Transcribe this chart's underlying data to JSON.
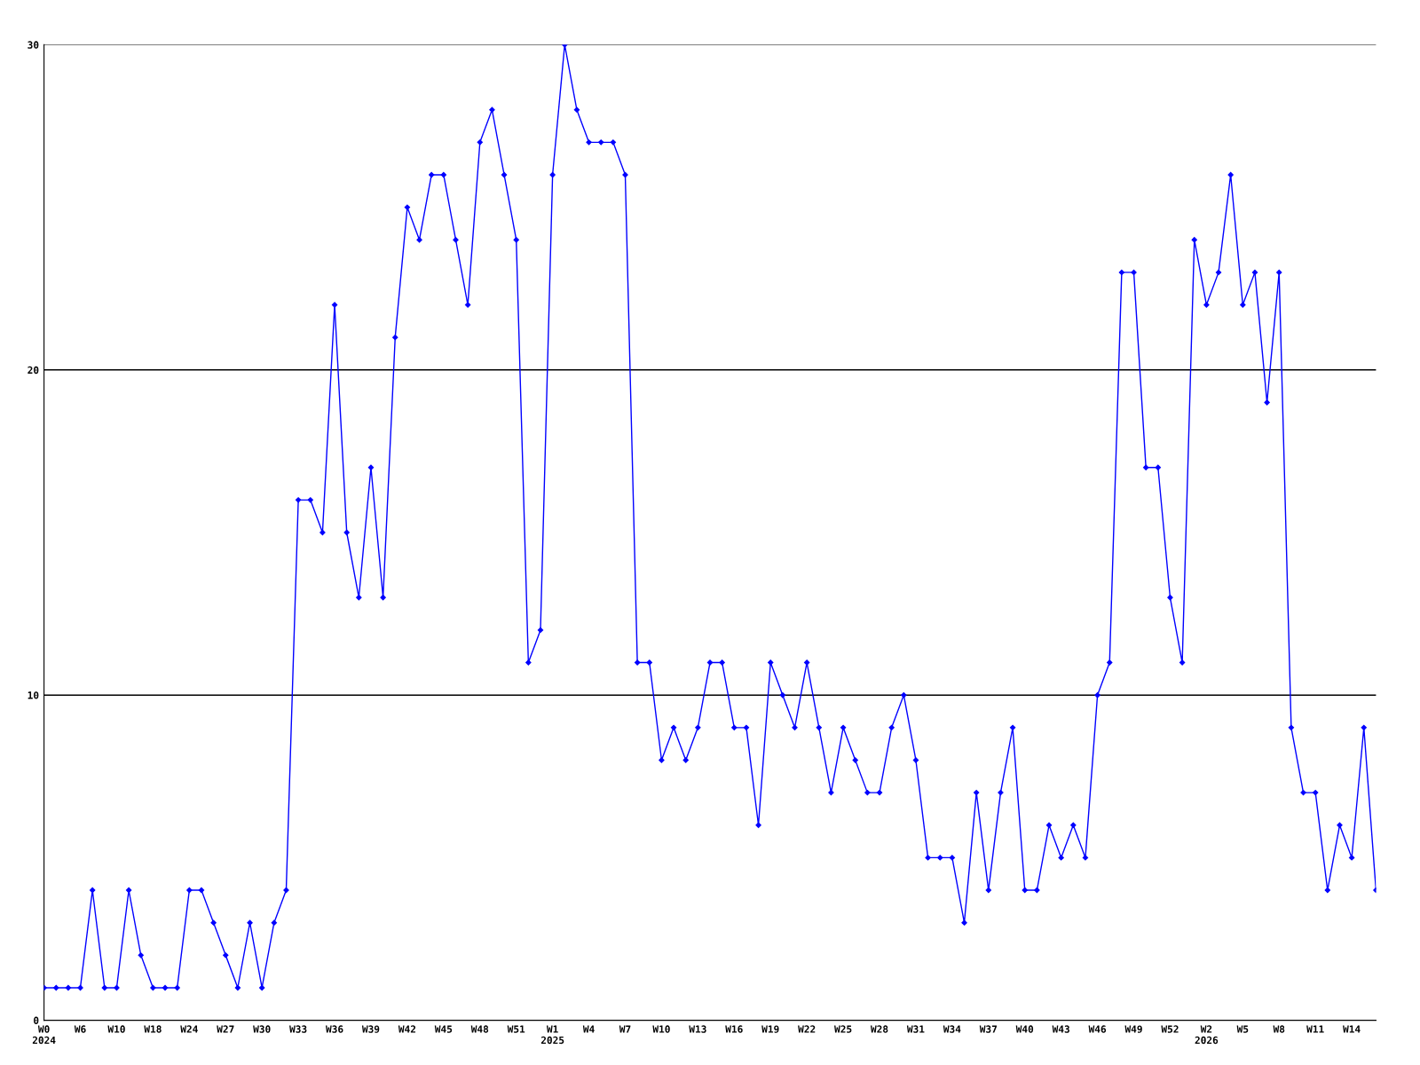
{
  "chart_data": {
    "type": "line",
    "categories": [
      "W0\n2024",
      null,
      null,
      "W6",
      null,
      null,
      "W10",
      null,
      null,
      "W18",
      null,
      null,
      "W24",
      null,
      null,
      "W27",
      null,
      null,
      "W30",
      null,
      null,
      "W33",
      null,
      null,
      "W36",
      null,
      null,
      "W39",
      null,
      null,
      "W42",
      null,
      null,
      "W45",
      null,
      null,
      "W48",
      null,
      null,
      "W51",
      null,
      null,
      "W1\n2025",
      null,
      null,
      "W4",
      null,
      null,
      "W7",
      null,
      null,
      "W10",
      null,
      null,
      "W13",
      null,
      null,
      "W16",
      null,
      null,
      "W19",
      null,
      null,
      "W22",
      null,
      null,
      "W25",
      null,
      null,
      "W28",
      null,
      null,
      "W31",
      null,
      null,
      "W34",
      null,
      null,
      "W37",
      null,
      null,
      "W40",
      null,
      null,
      "W43",
      null,
      null,
      "W46",
      null,
      null,
      "W49",
      null,
      null,
      "W52",
      null,
      null,
      "W2\n2026",
      null,
      null,
      "W5",
      null,
      null,
      "W8",
      null,
      null,
      "W11",
      null,
      null,
      "W14",
      null,
      null
    ],
    "series": [
      {
        "color": "#0000ff",
        "values": [
          1,
          1,
          1,
          1,
          4,
          1,
          1,
          4,
          2,
          1,
          1,
          1,
          4,
          4,
          3,
          2,
          1,
          3,
          1,
          3,
          4,
          16,
          16,
          15,
          22,
          15,
          13,
          17,
          13,
          21,
          25,
          24,
          26,
          26,
          24,
          22,
          27,
          28,
          26,
          24,
          11,
          12,
          26,
          30,
          28,
          27,
          27,
          27,
          26,
          11,
          11,
          8,
          9,
          8,
          9,
          11,
          11,
          9,
          9,
          6,
          11,
          10,
          9,
          11,
          9,
          7,
          9,
          8,
          7,
          7,
          9,
          10,
          8,
          5,
          5,
          5,
          3,
          7,
          4,
          7,
          9,
          4,
          4,
          6,
          5,
          6,
          5,
          10,
          11,
          23,
          23,
          17,
          17,
          13,
          11,
          24,
          22,
          23,
          26,
          22,
          23,
          19,
          23,
          9,
          7,
          7,
          4,
          6,
          5,
          9,
          4
        ]
      }
    ],
    "ylim": [
      0,
      30
    ],
    "yticks": [
      0,
      10,
      20,
      30
    ],
    "grid": "y",
    "marker": "diamond",
    "line_style": "solid"
  }
}
